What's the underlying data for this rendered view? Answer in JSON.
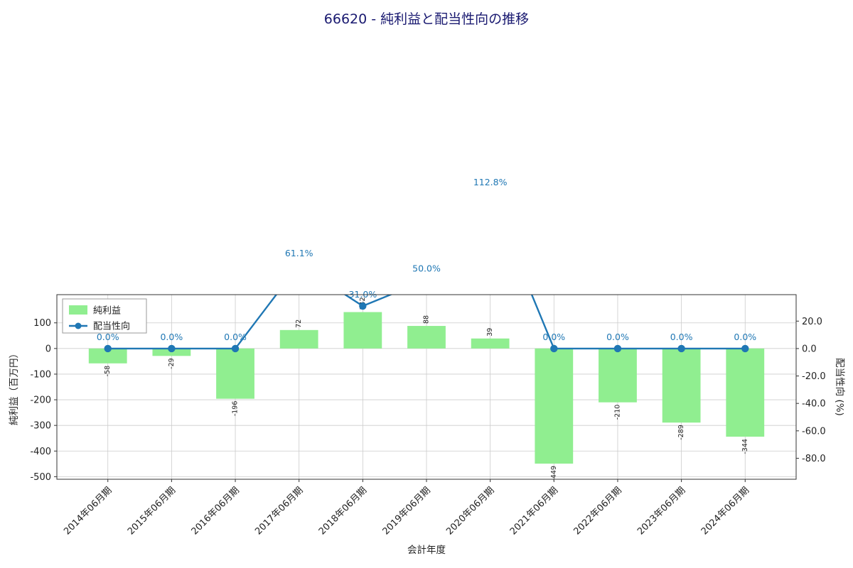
{
  "title": "66620 - 純利益と配当性向の推移",
  "legend": {
    "bar_label": "純利益",
    "line_label": "配当性向"
  },
  "axes": {
    "left_label": "純利益（百万円）",
    "right_label": "配当性向 (%)",
    "x_label": "会計年度"
  },
  "colors": {
    "bar": "#90ee90",
    "line": "#1f77b4",
    "title": "#191970",
    "grid": "#cccccc",
    "spine": "#333333"
  },
  "chart_data": {
    "type": "bar+line-combo",
    "title": "66620 - 純利益と配当性向の推移",
    "categories": [
      "2014年06月期",
      "2015年06月期",
      "2016年06月期",
      "2017年06月期",
      "2018年06月期",
      "2019年06月期",
      "2020年06月期",
      "2021年06月期",
      "2022年06月期",
      "2023年06月期",
      "2024年06月期"
    ],
    "series": [
      {
        "name": "純利益",
        "type": "bar",
        "axis": "left",
        "unit": "百万円",
        "values": [
          -58,
          -29,
          -196,
          72,
          142,
          88,
          39,
          -449,
          -210,
          -289,
          -344
        ]
      },
      {
        "name": "配当性向",
        "type": "line",
        "axis": "right",
        "unit": "%",
        "values": [
          0.0,
          0.0,
          0.0,
          61.1,
          31.0,
          50.0,
          112.8,
          0.0,
          0.0,
          0.0,
          0.0
        ],
        "labels": [
          "0.0%",
          "0.0%",
          "0.0%",
          "61.1%",
          "31.0%",
          "50.0%",
          "112.8%",
          "0.0%",
          "0.0%",
          "0.0%",
          "0.0%"
        ]
      }
    ],
    "left_axis": {
      "label": "純利益（百万円）",
      "ticks": [
        100,
        0,
        -100,
        -200,
        -300,
        -400,
        -500
      ],
      "range": [
        -510,
        210
      ]
    },
    "right_axis": {
      "label": "配当性向 (%)",
      "ticks": [
        20,
        0,
        -20,
        -40,
        -60,
        -80
      ],
      "tick_labels": [
        "20.0",
        "0.0",
        "-20.0",
        "-40.0",
        "-60.0",
        "-80.0"
      ],
      "range": [
        -95.3,
        39.3
      ]
    },
    "x_label": "会計年度",
    "xlim": [
      -0.8,
      10.8
    ],
    "bar_width": 0.6,
    "grid": true,
    "legend_position": "upper-left"
  }
}
